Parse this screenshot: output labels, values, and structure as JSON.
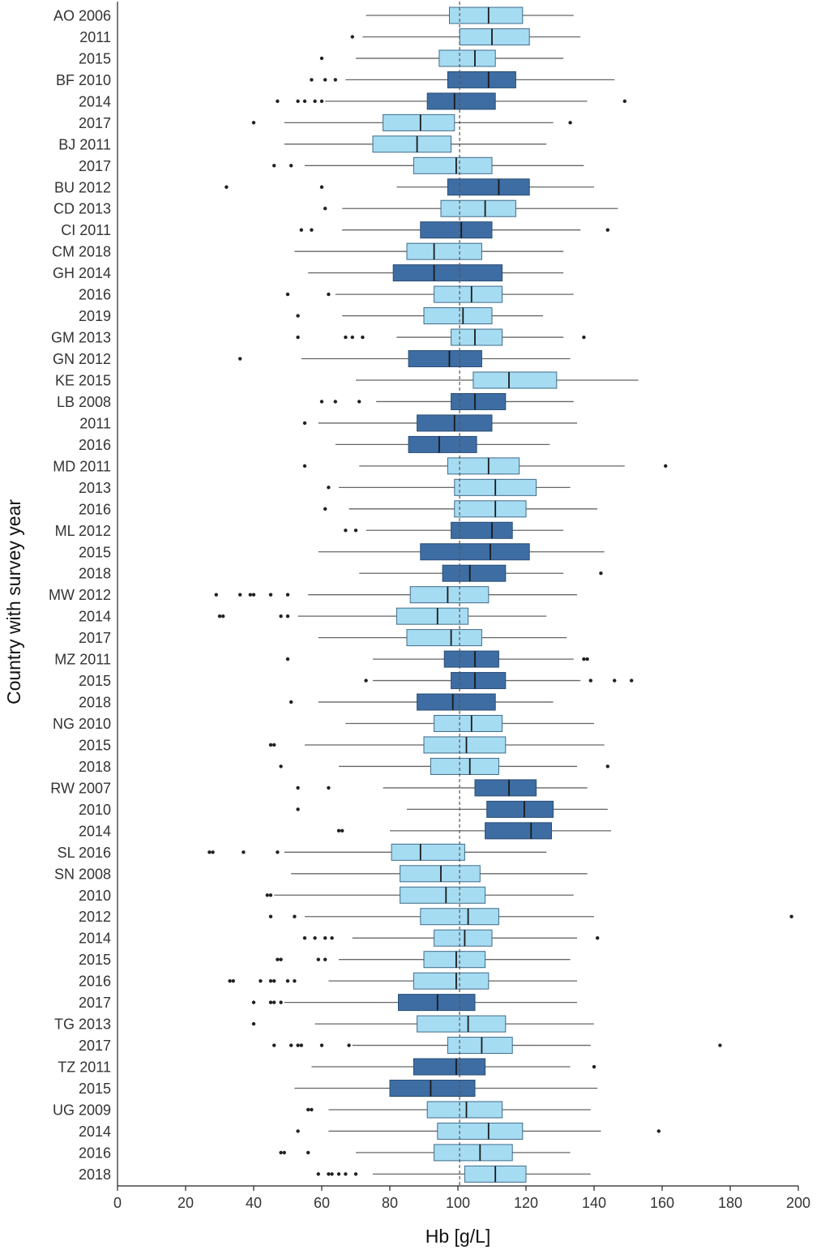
{
  "chart_data": {
    "type": "boxplot",
    "title": "",
    "xlabel": "Hb [g/L]",
    "ylabel": "Country with survey year",
    "xlim": [
      0,
      200
    ],
    "xticks": [
      0,
      20,
      40,
      60,
      80,
      100,
      120,
      140,
      160,
      180,
      200
    ],
    "reference_line": 100.5,
    "colors": {
      "light": "#a6dcf2",
      "dark": "#3d6da3"
    },
    "rows": [
      {
        "label": "AO 2006",
        "tone": "light",
        "whisker_low": 73,
        "q1": 97.5,
        "median": 109,
        "q3": 119,
        "whisker_high": 134,
        "outliers": []
      },
      {
        "label": "2011",
        "tone": "light",
        "whisker_low": 72,
        "q1": 100.5,
        "median": 110,
        "q3": 121,
        "whisker_high": 136,
        "outliers": [
          69
        ]
      },
      {
        "label": "2015",
        "tone": "light",
        "whisker_low": 70,
        "q1": 94.5,
        "median": 105,
        "q3": 111,
        "whisker_high": 131,
        "outliers": [
          60
        ]
      },
      {
        "label": "BF 2010",
        "tone": "dark",
        "whisker_low": 67,
        "q1": 97,
        "median": 109,
        "q3": 117,
        "whisker_high": 146,
        "outliers": [
          57,
          61,
          64
        ]
      },
      {
        "label": "2014",
        "tone": "dark",
        "whisker_low": 61,
        "q1": 91,
        "median": 99,
        "q3": 111,
        "whisker_high": 138,
        "outliers": [
          47,
          53,
          55,
          58,
          60,
          149
        ]
      },
      {
        "label": "2017",
        "tone": "light",
        "whisker_low": 49,
        "q1": 78,
        "median": 89,
        "q3": 99,
        "whisker_high": 128,
        "outliers": [
          40,
          133
        ]
      },
      {
        "label": "BJ 2011",
        "tone": "light",
        "whisker_low": 49,
        "q1": 75,
        "median": 88,
        "q3": 98,
        "whisker_high": 126,
        "outliers": []
      },
      {
        "label": "2017",
        "tone": "light",
        "whisker_low": 55,
        "q1": 87,
        "median": 99.5,
        "q3": 110,
        "whisker_high": 137,
        "outliers": [
          46,
          51
        ]
      },
      {
        "label": "BU 2012",
        "tone": "dark",
        "whisker_low": 82,
        "q1": 97,
        "median": 112,
        "q3": 121,
        "whisker_high": 140,
        "outliers": [
          32,
          60
        ]
      },
      {
        "label": "CD 2013",
        "tone": "light",
        "whisker_low": 66,
        "q1": 95,
        "median": 108,
        "q3": 117,
        "whisker_high": 147,
        "outliers": [
          61
        ]
      },
      {
        "label": "CI 2011",
        "tone": "dark",
        "whisker_low": 66,
        "q1": 89,
        "median": 101,
        "q3": 110,
        "whisker_high": 136,
        "outliers": [
          54,
          57,
          144
        ]
      },
      {
        "label": "CM 2018",
        "tone": "light",
        "whisker_low": 52,
        "q1": 85,
        "median": 93,
        "q3": 107,
        "whisker_high": 131,
        "outliers": []
      },
      {
        "label": "GH 2014",
        "tone": "dark",
        "whisker_low": 56,
        "q1": 81,
        "median": 93,
        "q3": 113,
        "whisker_high": 131,
        "outliers": []
      },
      {
        "label": "2016",
        "tone": "light",
        "whisker_low": 64,
        "q1": 93,
        "median": 104,
        "q3": 113,
        "whisker_high": 134,
        "outliers": [
          50,
          62
        ]
      },
      {
        "label": "2019",
        "tone": "light",
        "whisker_low": 66,
        "q1": 90,
        "median": 101.5,
        "q3": 110,
        "whisker_high": 125,
        "outliers": [
          53
        ]
      },
      {
        "label": "GM 2013",
        "tone": "light",
        "whisker_low": 82,
        "q1": 98,
        "median": 105,
        "q3": 113,
        "whisker_high": 131,
        "outliers": [
          53,
          67,
          69,
          72,
          137
        ]
      },
      {
        "label": "GN 2012",
        "tone": "dark",
        "whisker_low": 54,
        "q1": 85.5,
        "median": 97.5,
        "q3": 107,
        "whisker_high": 133,
        "outliers": [
          36
        ]
      },
      {
        "label": "KE 2015",
        "tone": "light",
        "whisker_low": 70,
        "q1": 104.5,
        "median": 115,
        "q3": 129,
        "whisker_high": 153,
        "outliers": []
      },
      {
        "label": "LB 2008",
        "tone": "dark",
        "whisker_low": 76,
        "q1": 98,
        "median": 105,
        "q3": 114,
        "whisker_high": 134,
        "outliers": [
          60,
          64,
          71
        ]
      },
      {
        "label": "2011",
        "tone": "dark",
        "whisker_low": 59,
        "q1": 88,
        "median": 99,
        "q3": 110,
        "whisker_high": 135,
        "outliers": [
          55
        ]
      },
      {
        "label": "2016",
        "tone": "dark",
        "whisker_low": 64,
        "q1": 85.5,
        "median": 94.5,
        "q3": 105.5,
        "whisker_high": 127,
        "outliers": []
      },
      {
        "label": "MD 2011",
        "tone": "light",
        "whisker_low": 71,
        "q1": 97,
        "median": 109,
        "q3": 118,
        "whisker_high": 149,
        "outliers": [
          55,
          161
        ]
      },
      {
        "label": "2013",
        "tone": "light",
        "whisker_low": 65,
        "q1": 99,
        "median": 111,
        "q3": 123,
        "whisker_high": 133,
        "outliers": [
          62
        ]
      },
      {
        "label": "2016",
        "tone": "light",
        "whisker_low": 68,
        "q1": 99,
        "median": 111,
        "q3": 120,
        "whisker_high": 141,
        "outliers": [
          61
        ]
      },
      {
        "label": "ML 2012",
        "tone": "dark",
        "whisker_low": 73,
        "q1": 98,
        "median": 110,
        "q3": 116,
        "whisker_high": 131,
        "outliers": [
          67,
          70
        ]
      },
      {
        "label": "2015",
        "tone": "dark",
        "whisker_low": 59,
        "q1": 89,
        "median": 109.5,
        "q3": 121,
        "whisker_high": 143,
        "outliers": []
      },
      {
        "label": "2018",
        "tone": "dark",
        "whisker_low": 71,
        "q1": 95.5,
        "median": 103.5,
        "q3": 114,
        "whisker_high": 131,
        "outliers": [
          142
        ]
      },
      {
        "label": "MW 2012",
        "tone": "light",
        "whisker_low": 56,
        "q1": 86,
        "median": 97,
        "q3": 109,
        "whisker_high": 135,
        "outliers": [
          29,
          36,
          39,
          40,
          45,
          50
        ]
      },
      {
        "label": "2014",
        "tone": "light",
        "whisker_low": 53,
        "q1": 82,
        "median": 94,
        "q3": 103,
        "whisker_high": 126,
        "outliers": [
          30,
          31,
          48,
          50
        ]
      },
      {
        "label": "2017",
        "tone": "light",
        "whisker_low": 59,
        "q1": 85,
        "median": 98,
        "q3": 107,
        "whisker_high": 132,
        "outliers": []
      },
      {
        "label": "MZ 2011",
        "tone": "dark",
        "whisker_low": 75,
        "q1": 96,
        "median": 105,
        "q3": 112,
        "whisker_high": 134,
        "outliers": [
          50,
          137,
          138
        ]
      },
      {
        "label": "2015",
        "tone": "dark",
        "whisker_low": 75,
        "q1": 98,
        "median": 105,
        "q3": 114,
        "whisker_high": 136,
        "outliers": [
          73,
          139,
          146,
          151
        ]
      },
      {
        "label": "2018",
        "tone": "dark",
        "whisker_low": 59,
        "q1": 88,
        "median": 98.5,
        "q3": 111,
        "whisker_high": 128,
        "outliers": [
          51
        ]
      },
      {
        "label": "NG 2010",
        "tone": "light",
        "whisker_low": 67,
        "q1": 93,
        "median": 104,
        "q3": 113,
        "whisker_high": 140,
        "outliers": []
      },
      {
        "label": "2015",
        "tone": "light",
        "whisker_low": 55,
        "q1": 90,
        "median": 102.5,
        "q3": 114,
        "whisker_high": 143,
        "outliers": [
          45,
          46
        ]
      },
      {
        "label": "2018",
        "tone": "light",
        "whisker_low": 65,
        "q1": 92,
        "median": 103.5,
        "q3": 112,
        "whisker_high": 135,
        "outliers": [
          48,
          144
        ]
      },
      {
        "label": "RW 2007",
        "tone": "dark",
        "whisker_low": 78,
        "q1": 105,
        "median": 115,
        "q3": 123,
        "whisker_high": 138,
        "outliers": [
          53,
          62
        ]
      },
      {
        "label": "2010",
        "tone": "dark",
        "whisker_low": 85,
        "q1": 108.5,
        "median": 119.5,
        "q3": 128,
        "whisker_high": 144,
        "outliers": [
          53
        ]
      },
      {
        "label": "2014",
        "tone": "dark",
        "whisker_low": 80,
        "q1": 108,
        "median": 121.5,
        "q3": 127.5,
        "whisker_high": 145,
        "outliers": [
          65,
          66
        ]
      },
      {
        "label": "SL 2016",
        "tone": "light",
        "whisker_low": 49,
        "q1": 80.5,
        "median": 89,
        "q3": 102,
        "whisker_high": 126,
        "outliers": [
          27,
          28,
          37,
          47
        ]
      },
      {
        "label": "SN 2008",
        "tone": "light",
        "whisker_low": 51,
        "q1": 83,
        "median": 95,
        "q3": 106.5,
        "whisker_high": 138,
        "outliers": []
      },
      {
        "label": "2010",
        "tone": "light",
        "whisker_low": 46,
        "q1": 83,
        "median": 96.5,
        "q3": 108,
        "whisker_high": 134,
        "outliers": [
          44,
          45
        ]
      },
      {
        "label": "2012",
        "tone": "light",
        "whisker_low": 55,
        "q1": 89,
        "median": 103,
        "q3": 112,
        "whisker_high": 140,
        "outliers": [
          45,
          52,
          198
        ]
      },
      {
        "label": "2014",
        "tone": "light",
        "whisker_low": 69,
        "q1": 93,
        "median": 102,
        "q3": 110,
        "whisker_high": 135,
        "outliers": [
          55,
          58,
          61,
          63,
          141
        ]
      },
      {
        "label": "2015",
        "tone": "light",
        "whisker_low": 65,
        "q1": 90,
        "median": 99.5,
        "q3": 108,
        "whisker_high": 133,
        "outliers": [
          47,
          48,
          59,
          61
        ]
      },
      {
        "label": "2016",
        "tone": "light",
        "whisker_low": 62,
        "q1": 87,
        "median": 99.5,
        "q3": 109,
        "whisker_high": 135,
        "outliers": [
          33,
          34,
          42,
          45,
          46,
          50,
          52
        ]
      },
      {
        "label": "2017",
        "tone": "dark",
        "whisker_low": 49,
        "q1": 82.5,
        "median": 94,
        "q3": 105,
        "whisker_high": 135,
        "outliers": [
          40,
          45,
          46,
          48
        ]
      },
      {
        "label": "TG 2013",
        "tone": "light",
        "whisker_low": 58,
        "q1": 88,
        "median": 103,
        "q3": 114,
        "whisker_high": 140,
        "outliers": [
          40
        ]
      },
      {
        "label": "2017",
        "tone": "light",
        "whisker_low": 69,
        "q1": 97,
        "median": 107,
        "q3": 116,
        "whisker_high": 139,
        "outliers": [
          46,
          51,
          53,
          54,
          60,
          68,
          177
        ]
      },
      {
        "label": "TZ 2011",
        "tone": "dark",
        "whisker_low": 57,
        "q1": 87,
        "median": 99.5,
        "q3": 108,
        "whisker_high": 133,
        "outliers": [
          140
        ]
      },
      {
        "label": "2015",
        "tone": "dark",
        "whisker_low": 52,
        "q1": 80,
        "median": 92,
        "q3": 105,
        "whisker_high": 141,
        "outliers": []
      },
      {
        "label": "UG 2009",
        "tone": "light",
        "whisker_low": 62,
        "q1": 91,
        "median": 102.5,
        "q3": 113,
        "whisker_high": 139,
        "outliers": [
          56,
          57
        ]
      },
      {
        "label": "2014",
        "tone": "light",
        "whisker_low": 62,
        "q1": 94,
        "median": 109,
        "q3": 119,
        "whisker_high": 142,
        "outliers": [
          53,
          159
        ]
      },
      {
        "label": "2016",
        "tone": "light",
        "whisker_low": 70,
        "q1": 93,
        "median": 106.5,
        "q3": 116,
        "whisker_high": 133,
        "outliers": [
          48,
          49,
          56
        ]
      },
      {
        "label": "2018",
        "tone": "light",
        "whisker_low": 75,
        "q1": 102,
        "median": 111,
        "q3": 120,
        "whisker_high": 139,
        "outliers": [
          59,
          62,
          63,
          65,
          67,
          70
        ]
      }
    ]
  }
}
